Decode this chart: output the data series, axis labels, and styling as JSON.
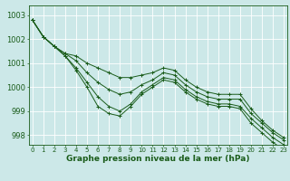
{
  "bg_color": "#cce8e8",
  "line_color": "#1a5c1a",
  "grid_color": "#ffffff",
  "xlabel": "Graphe pression niveau de la mer (hPa)",
  "xlabel_fontsize": 6.5,
  "ytick_fontsize": 6,
  "xtick_fontsize": 5,
  "ylim": [
    997.6,
    1003.4
  ],
  "xlim": [
    -0.3,
    23.3
  ],
  "yticks": [
    998,
    999,
    1000,
    1001,
    1002,
    1003
  ],
  "xticks": [
    0,
    1,
    2,
    3,
    4,
    5,
    6,
    7,
    8,
    9,
    10,
    11,
    12,
    13,
    14,
    15,
    16,
    17,
    18,
    19,
    20,
    21,
    22,
    23
  ],
  "series": [
    [
      1002.8,
      1002.1,
      1001.7,
      1001.4,
      1001.3,
      1001.0,
      1000.8,
      1000.6,
      1000.4,
      1000.4,
      1000.5,
      1000.6,
      1000.8,
      1000.7,
      1000.3,
      1000.0,
      999.8,
      999.7,
      999.7,
      999.7,
      999.1,
      998.6,
      998.2,
      997.9
    ],
    [
      1002.8,
      1002.1,
      1001.7,
      1001.4,
      1001.1,
      1000.6,
      1000.2,
      999.9,
      999.7,
      999.8,
      1000.1,
      1000.3,
      1000.6,
      1000.5,
      1000.1,
      999.8,
      999.6,
      999.5,
      999.5,
      999.5,
      998.9,
      998.5,
      998.1,
      997.8
    ],
    [
      1002.8,
      1002.1,
      1001.7,
      1001.3,
      1000.8,
      1000.2,
      999.6,
      999.2,
      999.0,
      999.3,
      999.8,
      1000.1,
      1000.4,
      1000.3,
      999.9,
      999.6,
      999.4,
      999.3,
      999.3,
      999.2,
      998.7,
      998.3,
      997.9,
      997.6
    ],
    [
      1002.8,
      1002.1,
      1001.7,
      1001.3,
      1000.7,
      1000.0,
      999.2,
      998.9,
      998.8,
      999.2,
      999.7,
      1000.0,
      1000.3,
      1000.2,
      999.8,
      999.5,
      999.3,
      999.2,
      999.2,
      999.1,
      998.5,
      998.1,
      997.7,
      997.4
    ]
  ]
}
